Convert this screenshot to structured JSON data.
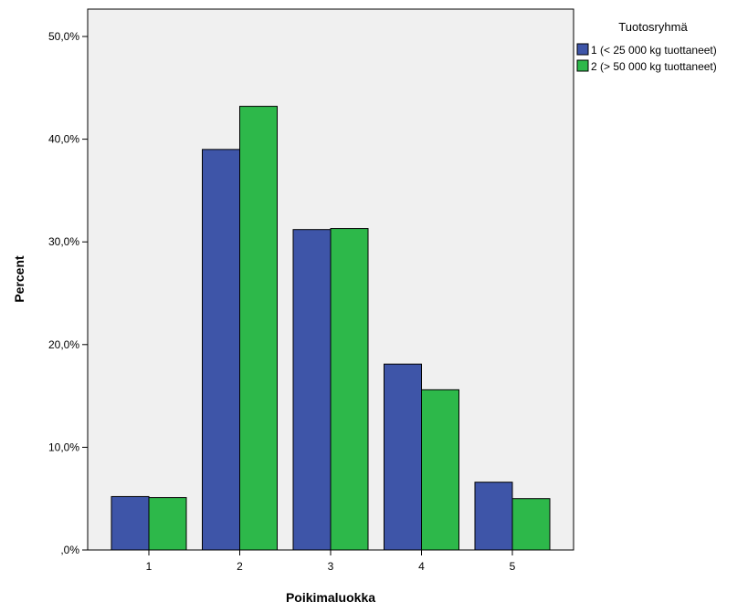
{
  "chart_data": {
    "type": "bar",
    "categories": [
      "1",
      "2",
      "3",
      "4",
      "5"
    ],
    "series": [
      {
        "name": "1 (< 25 000 kg tuottaneet)",
        "values": [
          5.2,
          39.0,
          31.2,
          18.1,
          6.6
        ],
        "color": "#3e55a8"
      },
      {
        "name": "2 (> 50 000 kg tuottaneet)",
        "values": [
          5.1,
          43.2,
          31.3,
          15.6,
          5.0
        ],
        "color": "#2db84a"
      }
    ],
    "xlabel": "Poikimaluokka",
    "ylabel": "Percent",
    "ylim": [
      0,
      50
    ],
    "yticks": [
      0,
      10,
      20,
      30,
      40,
      50
    ],
    "ytick_labels": [
      ",0%",
      "10,0%",
      "20,0%",
      "30,0%",
      "40,0%",
      "50,0%"
    ],
    "legend": {
      "title": "Tuotosryhmä",
      "placement": "top-right-outside"
    },
    "plot_background": "#f0f0f0",
    "grid": false
  }
}
